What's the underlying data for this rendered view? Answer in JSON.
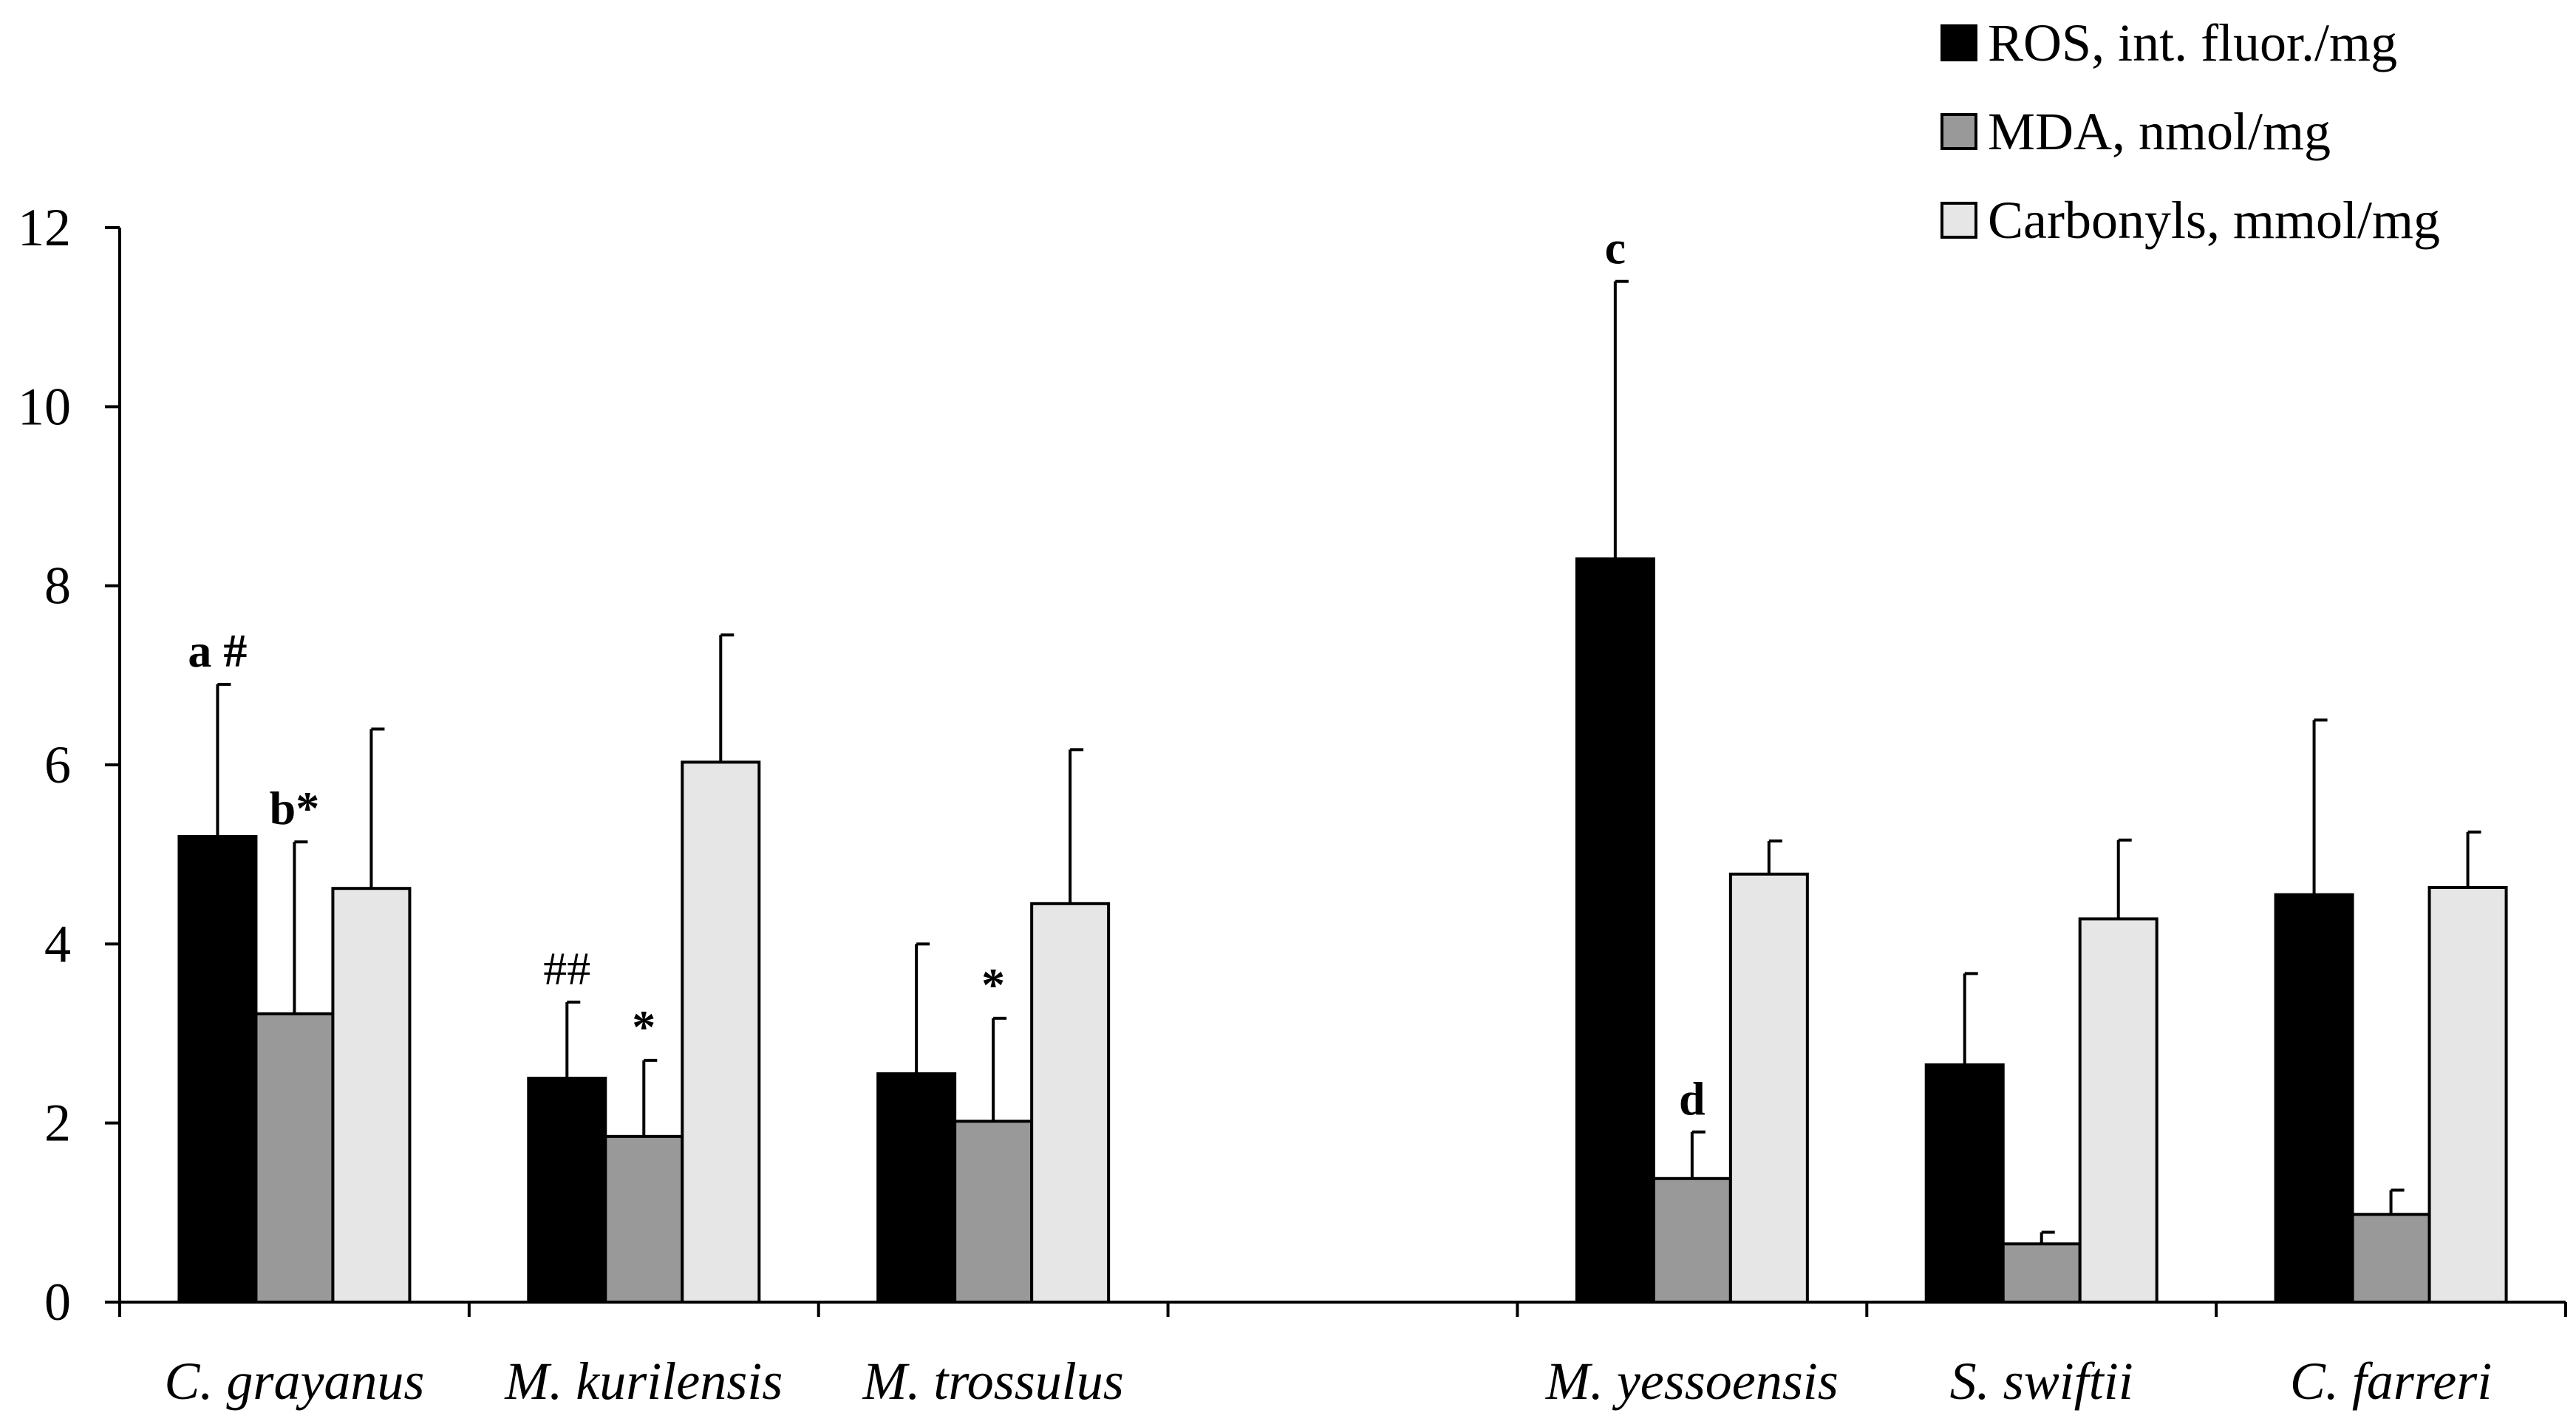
{
  "chart_data": {
    "type": "bar",
    "title": "",
    "xlabel": "",
    "ylabel": "",
    "ylim": [
      0,
      12
    ],
    "yticks": [
      0,
      2,
      4,
      6,
      8,
      10,
      12
    ],
    "grid": false,
    "legend_position": "top-right",
    "categories": [
      "C. grayanus",
      "M. kurilensis",
      "M. trossulus",
      "",
      "M. yessoensis",
      "S. swiftii",
      "C. farreri"
    ],
    "series": [
      {
        "name": "ROS, int. fluor./mg",
        "color": "#000000",
        "values": [
          5.2,
          2.5,
          2.55,
          null,
          8.3,
          2.65,
          4.55
        ],
        "errors": [
          1.7,
          0.85,
          1.45,
          null,
          3.1,
          1.02,
          1.95
        ]
      },
      {
        "name": "MDA, nmol/mg",
        "color": "#999999",
        "values": [
          3.22,
          1.85,
          2.02,
          null,
          1.38,
          0.65,
          0.98
        ],
        "errors": [
          1.92,
          0.85,
          1.15,
          null,
          0.52,
          0.13,
          0.27
        ]
      },
      {
        "name": "Carbonyls, mmol/mg",
        "color": "#e6e6e6",
        "values": [
          4.62,
          6.03,
          4.45,
          null,
          4.78,
          4.28,
          4.63
        ],
        "errors": [
          1.78,
          1.42,
          1.72,
          null,
          0.37,
          0.88,
          0.62
        ]
      }
    ],
    "annotations": [
      {
        "text": "a #",
        "category": 0,
        "series": 0,
        "style": "bold"
      },
      {
        "text": "b*",
        "category": 0,
        "series": 1,
        "style": "bold"
      },
      {
        "text": "##",
        "category": 1,
        "series": 0,
        "style": "plain"
      },
      {
        "text": "*",
        "category": 1,
        "series": 1,
        "style": "bold"
      },
      {
        "text": "*",
        "category": 2,
        "series": 1,
        "style": "bold"
      },
      {
        "text": "c",
        "category": 4,
        "series": 0,
        "style": "bold"
      },
      {
        "text": "d",
        "category": 4,
        "series": 1,
        "style": "bold"
      }
    ]
  }
}
